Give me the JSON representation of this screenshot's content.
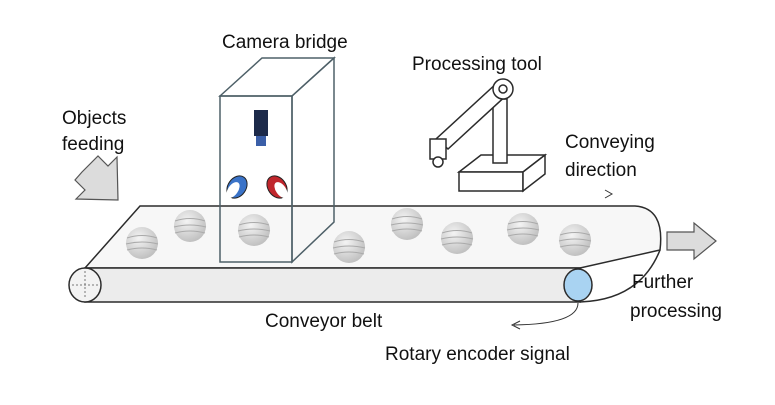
{
  "labels": {
    "camera_bridge": "Camera bridge",
    "processing_tool": "Processing tool",
    "objects_feeding_line1": "Objects",
    "objects_feeding_line2": "feeding",
    "conveying_direction_line1": "Conveying",
    "conveying_direction_line2": "direction",
    "conveyor_belt": "Conveyor belt",
    "further_processing_line1": "Further",
    "further_processing_line2": "processing",
    "rotary_encoder_signal": "Rotary encoder signal"
  },
  "colors": {
    "line": "#2b2b2b",
    "belt_fill": "#efefef",
    "ball": "#d8d8d8",
    "arrow_fill": "#dcdcdc",
    "camera_body": "#1d2a4a",
    "camera_lens": "#3b5fa8",
    "light_red": "#c0262c",
    "light_blue": "#3a73c8",
    "encoder_fill": "#a9d3f2",
    "bridge_edge": "#4e6068"
  }
}
